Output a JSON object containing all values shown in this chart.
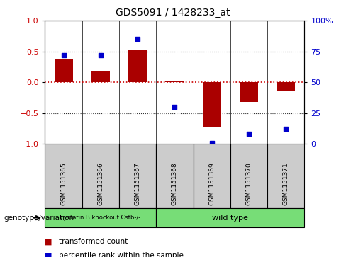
{
  "title": "GDS5091 / 1428233_at",
  "samples": [
    "GSM1151365",
    "GSM1151366",
    "GSM1151367",
    "GSM1151368",
    "GSM1151369",
    "GSM1151370",
    "GSM1151371"
  ],
  "bar_values": [
    0.38,
    0.18,
    0.52,
    0.02,
    -0.72,
    -0.32,
    -0.15
  ],
  "dot_values_pct": [
    72,
    72,
    85,
    30,
    1,
    8,
    12
  ],
  "bar_color": "#aa0000",
  "dot_color": "#0000cc",
  "ylim": [
    -1,
    1
  ],
  "y2lim": [
    0,
    100
  ],
  "yticks": [
    -1,
    -0.5,
    0,
    0.5,
    1
  ],
  "y2ticks": [
    0,
    25,
    50,
    75,
    100
  ],
  "y2ticklabels": [
    "0",
    "25",
    "50",
    "75",
    "100%"
  ],
  "hline_color": "#cc0000",
  "dotted_color": "#333333",
  "group1_label": "cystatin B knockout Cstb-/-",
  "group2_label": "wild type",
  "group1_count": 3,
  "group2_count": 4,
  "group1_color": "#77dd77",
  "group2_color": "#77dd77",
  "genotype_label": "genotype/variation",
  "legend_bar": "transformed count",
  "legend_dot": "percentile rank within the sample",
  "bar_width": 0.5,
  "axis_label_color_left": "#cc0000",
  "axis_label_color_right": "#0000cc",
  "sample_box_color": "#cccccc"
}
